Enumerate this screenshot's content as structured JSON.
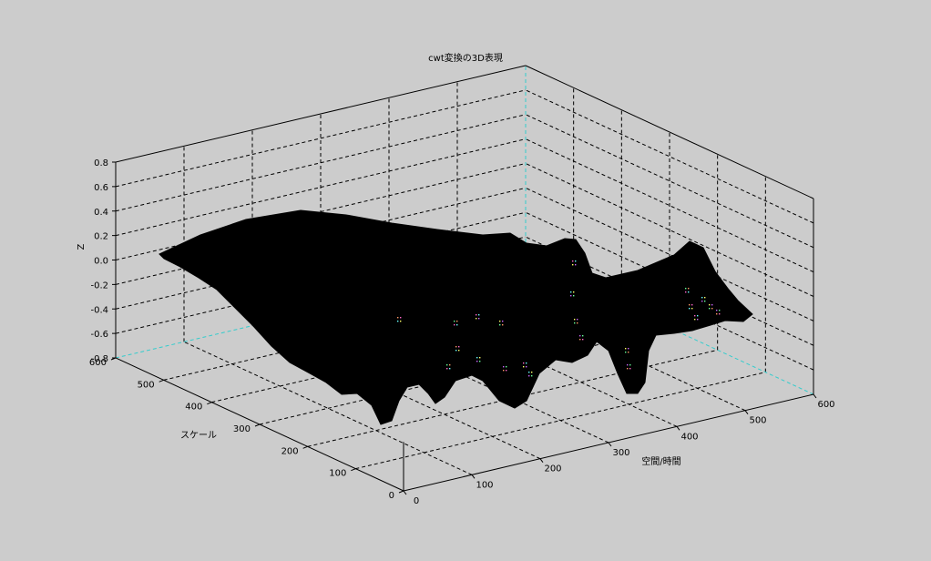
{
  "chart_data": {
    "type": "surface",
    "title": "cwt変換の3D表現",
    "xlabel": "空間/時間",
    "ylabel": "スケール",
    "zlabel": "Z",
    "x_ticks": [
      "0",
      "100",
      "200",
      "300",
      "400",
      "500",
      "600"
    ],
    "y_ticks": [
      "0",
      "100",
      "200",
      "300",
      "400",
      "500",
      "600"
    ],
    "z_ticks": [
      "-0.8",
      "-0.6",
      "-0.4",
      "-0.2",
      "0.0",
      "0.2",
      "0.4",
      "0.6",
      "0.8"
    ],
    "xlim": [
      0,
      600
    ],
    "ylim": [
      0,
      600
    ],
    "zlim": [
      -0.8,
      0.8
    ],
    "grid": true,
    "surface_color": "#000000",
    "grid_color": "#000000",
    "back_edge_color": "#33cccc",
    "background": "#cccccc"
  }
}
